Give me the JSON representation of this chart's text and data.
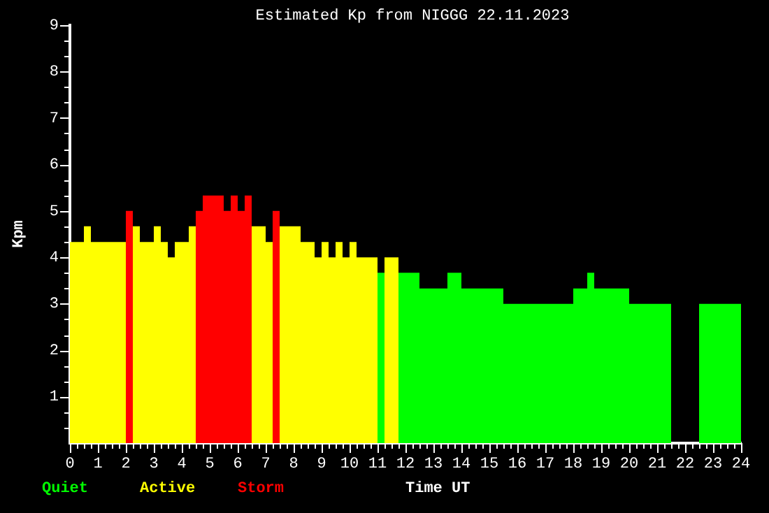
{
  "chart_data": {
    "type": "histogram",
    "title": "Estimated Kp from NIGGG 22.11.2023",
    "xlabel": "Time UT",
    "ylabel": "Kpm",
    "legend": "bottom left",
    "grid": false,
    "bins": [
      0,
      0.5,
      0.75,
      2,
      2.25,
      2.5,
      3,
      3.25,
      3.5,
      3.75,
      4.25,
      4.5,
      4.75,
      5.5,
      5.75,
      6,
      6.25,
      6.5,
      7,
      7.25,
      7.5,
      8.25,
      8.75,
      9,
      9.25,
      9.5,
      9.75,
      10,
      10.25,
      11,
      11.25,
      11.75,
      12.5,
      13.5,
      14,
      15.5,
      18,
      18.5,
      18.75,
      20,
      21.5,
      22.5,
      24
    ],
    "series": [
      {
        "name": "Quiet",
        "color": "#00ff00",
        "values": [
          null,
          null,
          null,
          null,
          null,
          null,
          null,
          null,
          null,
          null,
          null,
          null,
          null,
          null,
          null,
          null,
          null,
          null,
          null,
          null,
          null,
          null,
          null,
          null,
          null,
          null,
          null,
          null,
          null,
          3.67,
          null,
          3.67,
          3.33,
          3.67,
          3.33,
          3,
          3.33,
          3.67,
          3.33,
          3,
          null,
          3
        ]
      },
      {
        "name": "Active",
        "color": "#ffff00",
        "values": [
          4.33,
          4.67,
          4.33,
          null,
          4.67,
          4.33,
          4.67,
          4.33,
          4,
          4.33,
          4.67,
          null,
          null,
          null,
          null,
          null,
          null,
          4.67,
          4.33,
          null,
          4.67,
          4.33,
          4,
          4.33,
          4,
          4.33,
          4,
          4.33,
          4,
          null,
          4,
          null,
          null,
          null,
          null,
          null,
          null,
          null,
          null,
          null,
          null,
          null
        ]
      },
      {
        "name": "Storm",
        "color": "#ff0000",
        "values": [
          null,
          null,
          null,
          5,
          null,
          null,
          null,
          null,
          null,
          null,
          null,
          5,
          5.33,
          5,
          5.33,
          5,
          5.33,
          null,
          null,
          5,
          null,
          null,
          null,
          null,
          null,
          null,
          null,
          null,
          null,
          null,
          null,
          null,
          null,
          null,
          null,
          null,
          null,
          null,
          null,
          null,
          null,
          null
        ]
      }
    ],
    "xlim": [
      0,
      24
    ],
    "xticks": [
      0,
      {
        "value": 0.25,
        "label": null
      },
      {
        "value": 0.5,
        "label": null
      },
      {
        "value": 0.75,
        "label": null
      },
      1,
      {
        "value": 1.25,
        "label": null
      },
      {
        "value": 1.5,
        "label": null
      },
      {
        "value": 1.75,
        "label": null
      },
      2,
      {
        "value": 2.25,
        "label": null
      },
      {
        "value": 2.5,
        "label": null
      },
      {
        "value": 2.75,
        "label": null
      },
      3,
      {
        "value": 3.25,
        "label": null
      },
      {
        "value": 3.5,
        "label": null
      },
      {
        "value": 3.75,
        "label": null
      },
      4,
      {
        "value": 4.25,
        "label": null
      },
      {
        "value": 4.5,
        "label": null
      },
      {
        "value": 4.75,
        "label": null
      },
      5,
      {
        "value": 5.25,
        "label": null
      },
      {
        "value": 5.5,
        "label": null
      },
      {
        "value": 5.75,
        "label": null
      },
      6,
      {
        "value": 6.25,
        "label": null
      },
      {
        "value": 6.5,
        "label": null
      },
      {
        "value": 6.75,
        "label": null
      },
      7,
      {
        "value": 7.25,
        "label": null
      },
      {
        "value": 7.5,
        "label": null
      },
      {
        "value": 7.75,
        "label": null
      },
      8,
      {
        "value": 8.25,
        "label": null
      },
      {
        "value": 8.5,
        "label": null
      },
      {
        "value": 8.75,
        "label": null
      },
      9,
      {
        "value": 9.25,
        "label": null
      },
      {
        "value": 9.5,
        "label": null
      },
      {
        "value": 9.75,
        "label": null
      },
      10,
      {
        "value": 10.25,
        "label": null
      },
      {
        "value": 10.5,
        "label": null
      },
      {
        "value": 10.75,
        "label": null
      },
      11,
      {
        "value": 11.25,
        "label": null
      },
      {
        "value": 11.5,
        "label": null
      },
      {
        "value": 11.75,
        "label": null
      },
      12,
      {
        "value": 12.25,
        "label": null
      },
      {
        "value": 12.5,
        "label": null
      },
      {
        "value": 12.75,
        "label": null
      },
      13,
      {
        "value": 13.25,
        "label": null
      },
      {
        "value": 13.5,
        "label": null
      },
      {
        "value": 13.75,
        "label": null
      },
      14,
      {
        "value": 14.25,
        "label": null
      },
      {
        "value": 14.5,
        "label": null
      },
      {
        "value": 14.75,
        "label": null
      },
      15,
      {
        "value": 15.25,
        "label": null
      },
      {
        "value": 15.5,
        "label": null
      },
      {
        "value": 15.75,
        "label": null
      },
      16,
      {
        "value": 16.25,
        "label": null
      },
      {
        "value": 16.5,
        "label": null
      },
      {
        "value": 16.75,
        "label": null
      },
      17,
      {
        "value": 17.25,
        "label": null
      },
      {
        "value": 17.5,
        "label": null
      },
      {
        "value": 17.75,
        "label": null
      },
      18,
      {
        "value": 18.25,
        "label": null
      },
      {
        "value": 18.5,
        "label": null
      },
      {
        "value": 18.75,
        "label": null
      },
      19,
      {
        "value": 19.25,
        "label": null
      },
      {
        "value": 19.5,
        "label": null
      },
      {
        "value": 19.75,
        "label": null
      },
      20,
      {
        "value": 20.25,
        "label": null
      },
      {
        "value": 20.5,
        "label": null
      },
      {
        "value": 20.75,
        "label": null
      },
      21,
      {
        "value": 21.25,
        "label": null
      },
      {
        "value": 21.5,
        "label": null
      },
      {
        "value": 21.75,
        "label": null
      },
      22,
      {
        "value": 22.25,
        "label": null
      },
      {
        "value": 22.5,
        "label": null
      },
      {
        "value": 22.75,
        "label": null
      },
      23,
      {
        "value": 23.25,
        "label": null
      },
      {
        "value": 23.5,
        "label": null
      },
      {
        "value": 23.75,
        "label": null
      },
      24
    ],
    "ylim": [
      0,
      9
    ],
    "yticks": [
      {
        "value": 0.33,
        "label": null
      },
      {
        "value": 0.67,
        "label": null
      },
      1,
      {
        "value": 1.33,
        "label": null
      },
      {
        "value": 1.67,
        "label": null
      },
      2,
      {
        "value": 2.33,
        "label": null
      },
      {
        "value": 2.67,
        "label": null
      },
      3,
      {
        "value": 3.33,
        "label": null
      },
      {
        "value": 3.67,
        "label": null
      },
      4,
      {
        "value": 4.33,
        "label": null
      },
      {
        "value": 4.67,
        "label": null
      },
      5,
      {
        "value": 5.33,
        "label": null
      },
      {
        "value": 5.67,
        "label": null
      },
      6,
      {
        "value": 6.33,
        "label": null
      },
      {
        "value": 6.67,
        "label": null
      },
      7,
      {
        "value": 7.33,
        "label": null
      },
      {
        "value": 7.67,
        "label": null
      },
      8,
      {
        "value": 8.33,
        "label": null
      },
      {
        "value": 8.67,
        "label": null
      },
      9
    ]
  }
}
